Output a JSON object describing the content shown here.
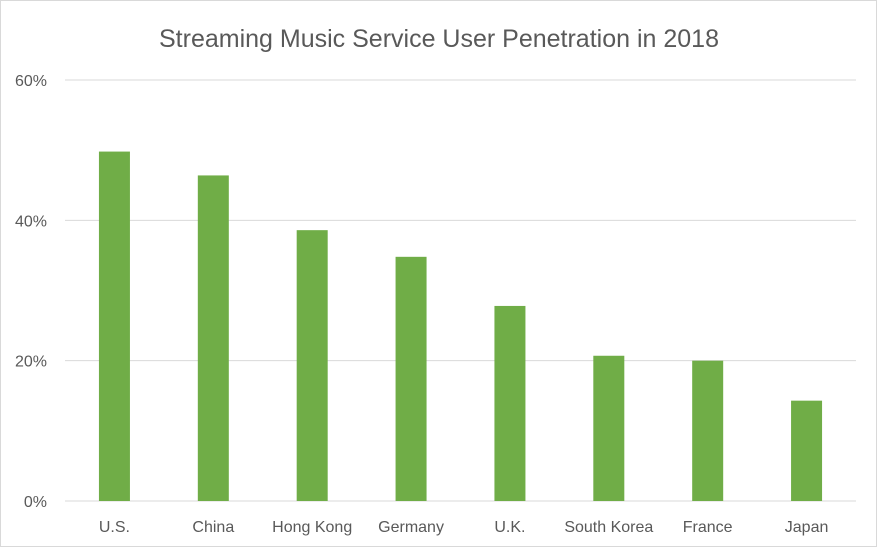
{
  "chart_data": {
    "type": "bar",
    "title": "Streaming Music Service User Penetration in 2018",
    "categories": [
      "U.S.",
      "China",
      "Hong Kong",
      "Germany",
      "U.K.",
      "South Korea",
      "France",
      "Japan"
    ],
    "values": [
      49.8,
      46.4,
      38.6,
      34.8,
      27.8,
      20.7,
      20.0,
      14.3
    ],
    "y_ticks": [
      "0%",
      "20%",
      "40%",
      "60%"
    ],
    "ylim": [
      0,
      60
    ],
    "xlabel": "",
    "ylabel": "",
    "grid": true,
    "legend": "none",
    "colors": {
      "bar": "#70ad47",
      "grid": "#d9d9d9",
      "text": "#595959"
    }
  }
}
